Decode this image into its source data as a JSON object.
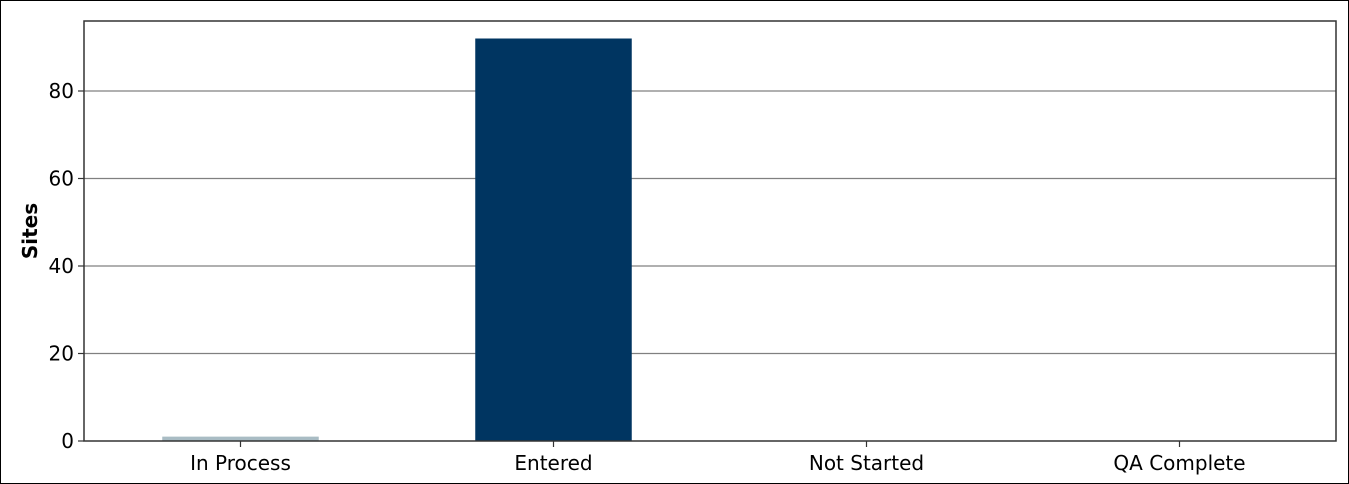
{
  "chart_data": {
    "type": "bar",
    "title": "",
    "xlabel": "",
    "ylabel": "Sites",
    "categories": [
      "In Process",
      "Entered",
      "Not Started",
      "QA Complete"
    ],
    "values": [
      1,
      92,
      0,
      0
    ],
    "bar_colors": [
      "#a9bcc4",
      "#003561",
      "#003561",
      "#003561"
    ],
    "ylim": [
      0,
      96
    ],
    "yticks": [
      0,
      20,
      40,
      60,
      80
    ],
    "grid": "horizontal",
    "grid_color": "#808080",
    "legend": "none"
  }
}
